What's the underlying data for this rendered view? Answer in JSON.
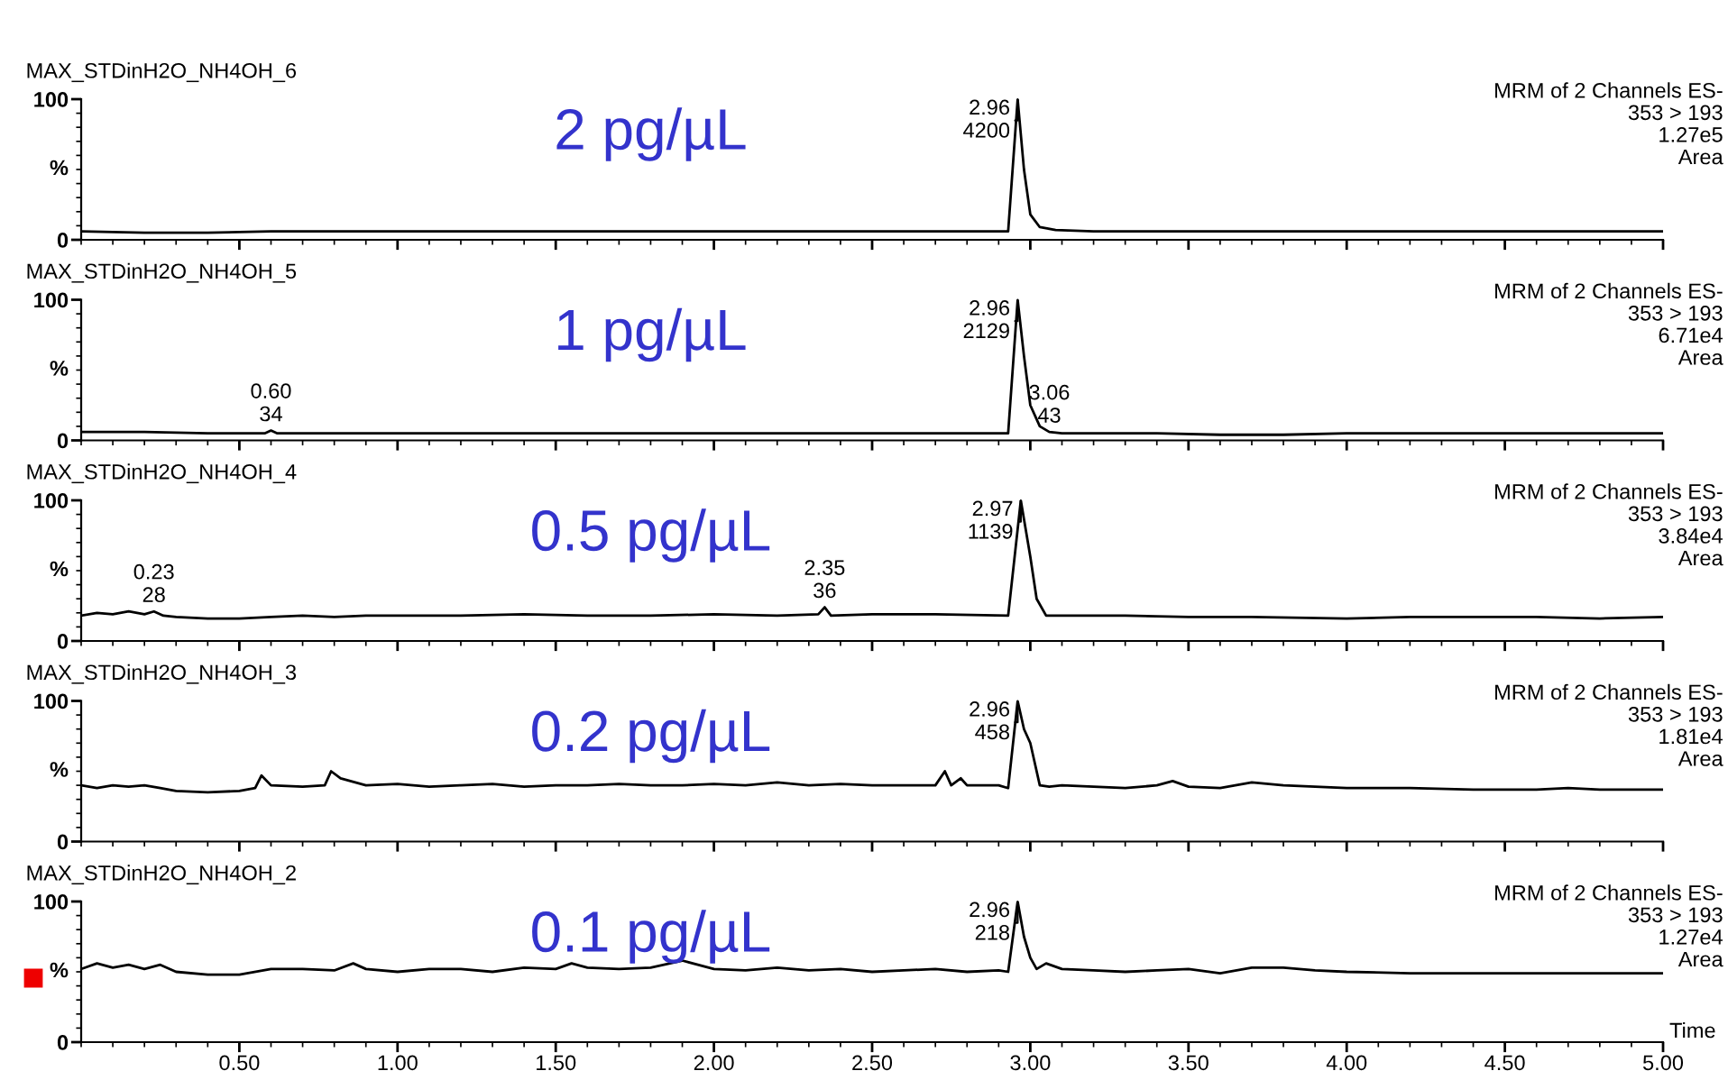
{
  "chart_data": [
    {
      "type": "line",
      "title": "MAX_STDinH2O_NH4OH_6",
      "subtitle": "2 pg/µL",
      "ylabel": "%",
      "color": "#000000",
      "tick_labels": "y",
      "xlim": [
        0,
        5
      ],
      "ylim": [
        0,
        100
      ],
      "yticks": [
        0,
        100
      ],
      "xticks": [
        0.5,
        1,
        1.5,
        2,
        2.5,
        3,
        3.5,
        4,
        4.5,
        5
      ],
      "x": [
        0,
        0.2,
        0.4,
        0.6,
        0.8,
        1.0,
        1.2,
        1.4,
        1.6,
        1.8,
        2.0,
        2.2,
        2.4,
        2.6,
        2.8,
        2.93,
        2.96,
        2.98,
        3.0,
        3.03,
        3.08,
        3.2,
        3.4,
        3.6,
        3.8,
        4.0,
        4.2,
        4.4,
        4.6,
        4.8,
        5.0
      ],
      "values": [
        6,
        5,
        5,
        6,
        6,
        6,
        6,
        6,
        6,
        6,
        6,
        6,
        6,
        6,
        6,
        6,
        100,
        50,
        18,
        9,
        7,
        6,
        6,
        6,
        6,
        6,
        6,
        6,
        6,
        6,
        6
      ],
      "annotations": [
        "MRM of 2 Channels ES-\n353 > 193\n1.27e5\nArea",
        {
          "text": "2.96\n4200",
          "x": 2.96,
          "y": 100
        }
      ]
    },
    {
      "type": "line",
      "title": "MAX_STDinH2O_NH4OH_5",
      "subtitle": "1 pg/µL",
      "ylabel": "%",
      "color": "#000000",
      "tick_labels": "y",
      "xlim": [
        0,
        5
      ],
      "ylim": [
        0,
        100
      ],
      "yticks": [
        0,
        100
      ],
      "xticks": [
        0.5,
        1,
        1.5,
        2,
        2.5,
        3,
        3.5,
        4,
        4.5,
        5
      ],
      "x": [
        0,
        0.2,
        0.4,
        0.58,
        0.6,
        0.62,
        0.8,
        1.0,
        1.2,
        1.4,
        1.6,
        1.8,
        2.0,
        2.2,
        2.4,
        2.6,
        2.8,
        2.93,
        2.96,
        2.98,
        3.0,
        3.03,
        3.06,
        3.1,
        3.2,
        3.4,
        3.6,
        3.8,
        4.0,
        4.2,
        4.4,
        4.6,
        4.8,
        5.0
      ],
      "values": [
        6,
        6,
        5,
        5,
        7,
        5,
        5,
        5,
        5,
        5,
        5,
        5,
        5,
        5,
        5,
        5,
        5,
        5,
        100,
        60,
        25,
        10,
        6,
        5,
        5,
        5,
        4,
        4,
        5,
        5,
        5,
        5,
        5,
        5
      ],
      "annotations": [
        "MRM of 2 Channels ES-\n353 > 193\n6.71e4\nArea",
        {
          "text": "2.96\n2129",
          "x": 2.96,
          "y": 100
        },
        {
          "text": "0.60\n34",
          "x": 0.6,
          "y": 7
        },
        {
          "text": "3.06\n43",
          "x": 3.06,
          "y": 6
        }
      ]
    },
    {
      "type": "line",
      "title": "MAX_STDinH2O_NH4OH_4",
      "subtitle": "0.5 pg/µL",
      "ylabel": "%",
      "color": "#000000",
      "tick_labels": "y",
      "xlim": [
        0,
        5
      ],
      "ylim": [
        0,
        100
      ],
      "yticks": [
        0,
        100
      ],
      "xticks": [
        0.5,
        1,
        1.5,
        2,
        2.5,
        3,
        3.5,
        4,
        4.5,
        5
      ],
      "x": [
        0,
        0.05,
        0.1,
        0.15,
        0.2,
        0.23,
        0.26,
        0.3,
        0.4,
        0.5,
        0.6,
        0.7,
        0.8,
        0.9,
        1.0,
        1.2,
        1.4,
        1.6,
        1.8,
        2.0,
        2.2,
        2.33,
        2.35,
        2.37,
        2.5,
        2.7,
        2.93,
        2.97,
        3.0,
        3.02,
        3.05,
        3.1,
        3.3,
        3.5,
        3.7,
        4.0,
        4.2,
        4.4,
        4.6,
        4.8,
        5.0
      ],
      "values": [
        18,
        20,
        19,
        21,
        19,
        21,
        18,
        17,
        16,
        16,
        17,
        18,
        17,
        18,
        18,
        18,
        19,
        18,
        18,
        19,
        18,
        19,
        24,
        18,
        19,
        19,
        18,
        100,
        60,
        30,
        18,
        18,
        18,
        17,
        17,
        16,
        17,
        17,
        17,
        16,
        17
      ],
      "annotations": [
        "MRM of 2 Channels ES-\n353 > 193\n3.84e4\nArea",
        {
          "text": "2.97\n1139",
          "x": 2.97,
          "y": 100
        },
        {
          "text": "0.23\n28",
          "x": 0.23,
          "y": 21
        },
        {
          "text": "2.35\n36",
          "x": 2.35,
          "y": 24
        }
      ]
    },
    {
      "type": "line",
      "title": "MAX_STDinH2O_NH4OH_3",
      "subtitle": "0.2 pg/µL",
      "ylabel": "%",
      "color": "#000000",
      "tick_labels": "y",
      "xlim": [
        0,
        5
      ],
      "ylim": [
        0,
        100
      ],
      "yticks": [
        0,
        100
      ],
      "xticks": [
        0.5,
        1,
        1.5,
        2,
        2.5,
        3,
        3.5,
        4,
        4.5,
        5
      ],
      "x": [
        0,
        0.05,
        0.1,
        0.15,
        0.2,
        0.25,
        0.3,
        0.4,
        0.5,
        0.55,
        0.57,
        0.6,
        0.7,
        0.77,
        0.79,
        0.82,
        0.9,
        1.0,
        1.1,
        1.2,
        1.3,
        1.4,
        1.5,
        1.6,
        1.7,
        1.8,
        1.9,
        2.0,
        2.1,
        2.2,
        2.3,
        2.4,
        2.5,
        2.6,
        2.7,
        2.73,
        2.75,
        2.78,
        2.8,
        2.9,
        2.93,
        2.96,
        2.98,
        3.0,
        3.03,
        3.06,
        3.1,
        3.2,
        3.3,
        3.4,
        3.45,
        3.5,
        3.6,
        3.7,
        3.8,
        3.9,
        4.0,
        4.2,
        4.4,
        4.6,
        4.7,
        4.8,
        5.0
      ],
      "values": [
        40,
        38,
        40,
        39,
        40,
        38,
        36,
        35,
        36,
        38,
        47,
        40,
        39,
        40,
        50,
        45,
        40,
        41,
        39,
        40,
        41,
        39,
        40,
        40,
        41,
        40,
        40,
        41,
        40,
        42,
        40,
        41,
        40,
        40,
        40,
        50,
        40,
        45,
        40,
        40,
        38,
        100,
        80,
        70,
        40,
        39,
        40,
        39,
        38,
        40,
        43,
        39,
        38,
        42,
        40,
        39,
        38,
        38,
        37,
        37,
        38,
        37,
        37
      ],
      "annotations": [
        "MRM of 2 Channels ES-\n353 > 193\n1.81e4\nArea",
        {
          "text": "2.96\n458",
          "x": 2.96,
          "y": 100
        }
      ]
    },
    {
      "type": "line",
      "title": "MAX_STDinH2O_NH4OH_2",
      "subtitle": "0.1 pg/µL",
      "ylabel": "%",
      "xlabel": "Time",
      "color": "#000000",
      "xlim": [
        0,
        5
      ],
      "ylim": [
        0,
        100
      ],
      "yticks": [
        0,
        100
      ],
      "xticks": [
        {
          "value": 0.5,
          "label": "0.50"
        },
        {
          "value": 1,
          "label": "1.00"
        },
        {
          "value": 1.5,
          "label": "1.50"
        },
        {
          "value": 2,
          "label": "2.00"
        },
        {
          "value": 2.5,
          "label": "2.50"
        },
        {
          "value": 3,
          "label": "3.00"
        },
        {
          "value": 3.5,
          "label": "3.50"
        },
        {
          "value": 4,
          "label": "4.00"
        },
        {
          "value": 4.5,
          "label": "4.50"
        },
        {
          "value": 5,
          "label": "5.00"
        }
      ],
      "x": [
        0,
        0.05,
        0.1,
        0.15,
        0.2,
        0.25,
        0.3,
        0.4,
        0.5,
        0.6,
        0.7,
        0.8,
        0.86,
        0.9,
        1.0,
        1.1,
        1.2,
        1.3,
        1.4,
        1.5,
        1.55,
        1.6,
        1.7,
        1.8,
        1.9,
        2.0,
        2.1,
        2.2,
        2.3,
        2.4,
        2.5,
        2.6,
        2.7,
        2.8,
        2.9,
        2.93,
        2.96,
        2.98,
        3.0,
        3.02,
        3.05,
        3.1,
        3.2,
        3.3,
        3.4,
        3.5,
        3.6,
        3.7,
        3.8,
        3.9,
        4.0,
        4.2,
        4.4,
        4.6,
        4.8,
        5.0
      ],
      "values": [
        52,
        56,
        53,
        55,
        52,
        55,
        50,
        48,
        48,
        52,
        52,
        51,
        56,
        52,
        50,
        52,
        52,
        50,
        53,
        52,
        56,
        53,
        52,
        53,
        58,
        52,
        51,
        53,
        51,
        52,
        50,
        51,
        52,
        50,
        51,
        50,
        100,
        75,
        60,
        52,
        56,
        52,
        51,
        50,
        51,
        52,
        49,
        53,
        53,
        51,
        50,
        49,
        49,
        49,
        49,
        49
      ],
      "annotations": [
        "MRM of 2 Channels ES-\n353 > 193\n1.27e4\nArea",
        {
          "text": "2.96\n218",
          "x": 2.96,
          "y": 100
        }
      ]
    }
  ]
}
